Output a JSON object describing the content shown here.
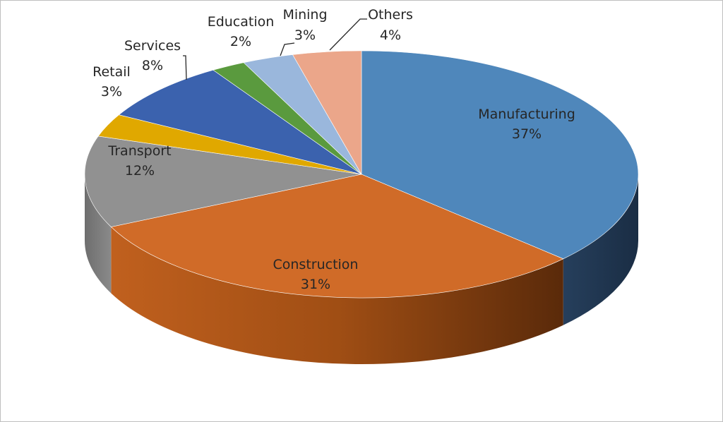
{
  "chart_data": {
    "type": "pie",
    "title": "",
    "categories": [
      "Manufacturing",
      "Construction",
      "Transport",
      "Retail",
      "Services",
      "Education",
      "Mining",
      "Others"
    ],
    "values": [
      37,
      31,
      12,
      3,
      8,
      2,
      3,
      4
    ],
    "value_labels": [
      "37%",
      "31%",
      "12%",
      "3%",
      "8%",
      "2%",
      "3%",
      "4%"
    ],
    "colors": [
      "#4f87bb",
      "#d06b28",
      "#919191",
      "#e0a800",
      "#3b62ae",
      "#5a9a3e",
      "#9ab7dc",
      "#eba68a"
    ],
    "side_colors": [
      "#1e3650",
      "#8a3d10"
    ],
    "legend": "none",
    "data_labels": "category and percentage"
  }
}
